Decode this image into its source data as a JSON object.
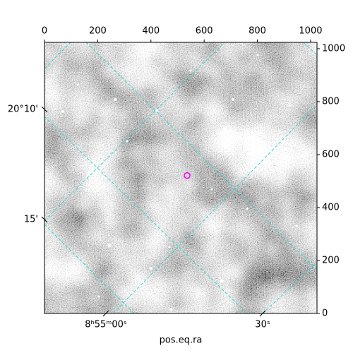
{
  "chart_data": {
    "type": "image",
    "xlabel": "pos.eq.ra",
    "xlim": [
      0,
      1024
    ],
    "ylim": [
      0,
      1024
    ],
    "xticks": [
      0,
      200,
      400,
      600,
      800,
      1000
    ],
    "yticks": [
      0,
      200,
      400,
      600,
      800,
      1000
    ],
    "ra_tick_labels": [
      "8ʰ55ᵐ00ˢ",
      "30ˢ"
    ],
    "dec_tick_labels": [
      "20°10'",
      "15'"
    ],
    "marker": {
      "x": 536,
      "y": 521,
      "color": "#ff00ff"
    }
  }
}
